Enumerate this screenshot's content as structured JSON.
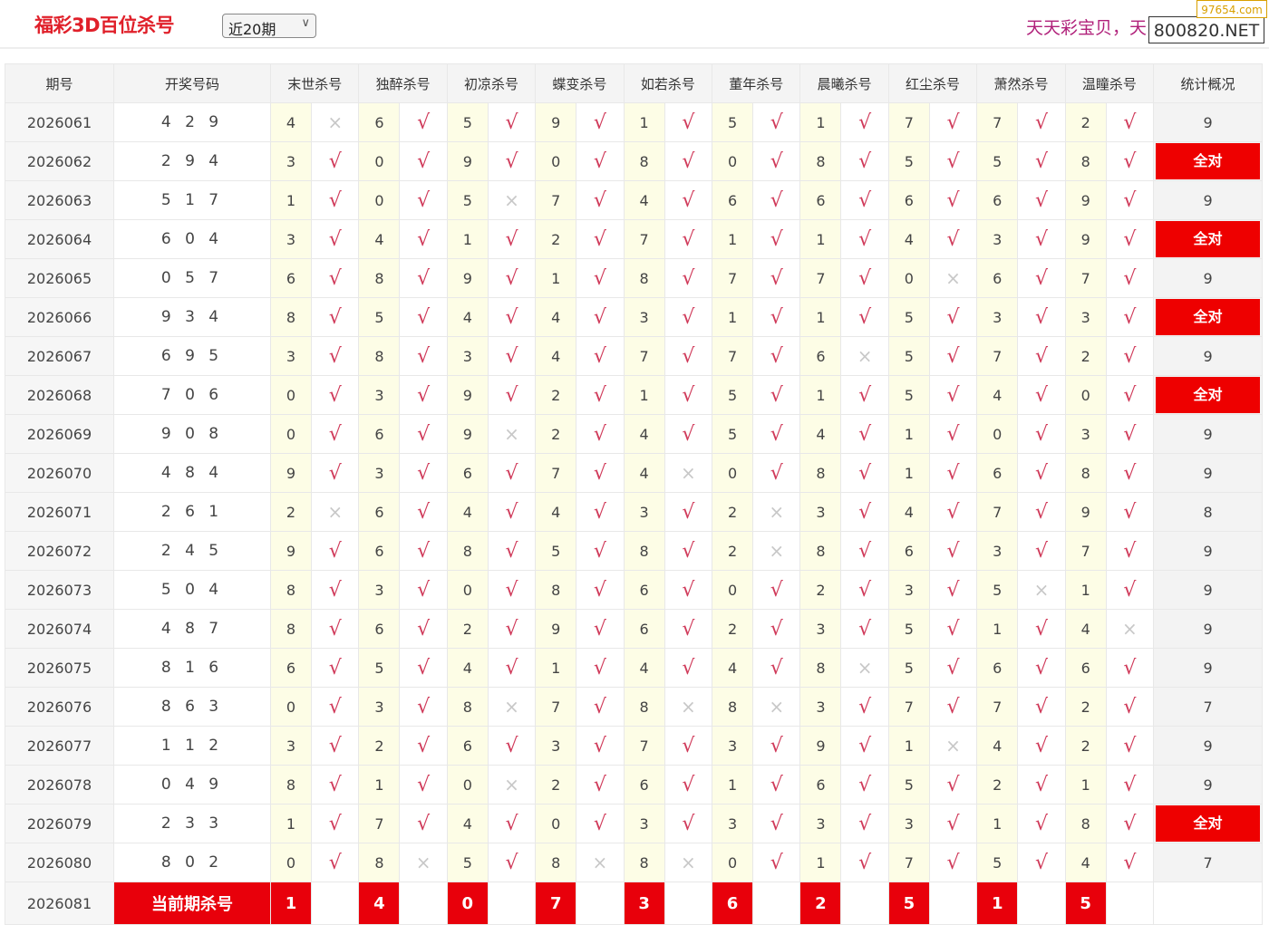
{
  "header": {
    "title": "福彩3D百位杀号",
    "period_select": "近20期",
    "slogan": "天天彩宝贝，天",
    "watermark_main": "800820.NET",
    "watermark_corner": "97654.com"
  },
  "colors": {
    "accent_red": "#e8000b",
    "check": "#d03a5a",
    "cross": "#c8c8c8",
    "number_bg": "#fdfde6"
  },
  "table": {
    "columns": [
      "期号",
      "开奖号码",
      "末世杀号",
      "独醉杀号",
      "初凉杀号",
      "蝶变杀号",
      "如若杀号",
      "董年杀号",
      "晨曦杀号",
      "红尘杀号",
      "萧然杀号",
      "温瞳杀号",
      "统计概况"
    ],
    "check_symbol": "√",
    "cross_symbol": "×",
    "rows": [
      {
        "period": "2026061",
        "draw": "4 2 9",
        "kills": [
          [
            4,
            false
          ],
          [
            6,
            true
          ],
          [
            5,
            true
          ],
          [
            9,
            true
          ],
          [
            1,
            true
          ],
          [
            5,
            true
          ],
          [
            1,
            true
          ],
          [
            7,
            true
          ],
          [
            7,
            true
          ],
          [
            2,
            true
          ]
        ],
        "stat": "9"
      },
      {
        "period": "2026062",
        "draw": "2 9 4",
        "kills": [
          [
            3,
            true
          ],
          [
            0,
            true
          ],
          [
            9,
            true
          ],
          [
            0,
            true
          ],
          [
            8,
            true
          ],
          [
            0,
            true
          ],
          [
            8,
            true
          ],
          [
            5,
            true
          ],
          [
            5,
            true
          ],
          [
            8,
            true
          ]
        ],
        "stat": "全对"
      },
      {
        "period": "2026063",
        "draw": "5 1 7",
        "kills": [
          [
            1,
            true
          ],
          [
            0,
            true
          ],
          [
            5,
            false
          ],
          [
            7,
            true
          ],
          [
            4,
            true
          ],
          [
            6,
            true
          ],
          [
            6,
            true
          ],
          [
            6,
            true
          ],
          [
            6,
            true
          ],
          [
            9,
            true
          ]
        ],
        "stat": "9"
      },
      {
        "period": "2026064",
        "draw": "6 0 4",
        "kills": [
          [
            3,
            true
          ],
          [
            4,
            true
          ],
          [
            1,
            true
          ],
          [
            2,
            true
          ],
          [
            7,
            true
          ],
          [
            1,
            true
          ],
          [
            1,
            true
          ],
          [
            4,
            true
          ],
          [
            3,
            true
          ],
          [
            9,
            true
          ]
        ],
        "stat": "全对"
      },
      {
        "period": "2026065",
        "draw": "0 5 7",
        "kills": [
          [
            6,
            true
          ],
          [
            8,
            true
          ],
          [
            9,
            true
          ],
          [
            1,
            true
          ],
          [
            8,
            true
          ],
          [
            7,
            true
          ],
          [
            7,
            true
          ],
          [
            0,
            false
          ],
          [
            6,
            true
          ],
          [
            7,
            true
          ]
        ],
        "stat": "9"
      },
      {
        "period": "2026066",
        "draw": "9 3 4",
        "kills": [
          [
            8,
            true
          ],
          [
            5,
            true
          ],
          [
            4,
            true
          ],
          [
            4,
            true
          ],
          [
            3,
            true
          ],
          [
            1,
            true
          ],
          [
            1,
            true
          ],
          [
            5,
            true
          ],
          [
            3,
            true
          ],
          [
            3,
            true
          ]
        ],
        "stat": "全对"
      },
      {
        "period": "2026067",
        "draw": "6 9 5",
        "kills": [
          [
            3,
            true
          ],
          [
            8,
            true
          ],
          [
            3,
            true
          ],
          [
            4,
            true
          ],
          [
            7,
            true
          ],
          [
            7,
            true
          ],
          [
            6,
            false
          ],
          [
            5,
            true
          ],
          [
            7,
            true
          ],
          [
            2,
            true
          ]
        ],
        "stat": "9"
      },
      {
        "period": "2026068",
        "draw": "7 0 6",
        "kills": [
          [
            0,
            true
          ],
          [
            3,
            true
          ],
          [
            9,
            true
          ],
          [
            2,
            true
          ],
          [
            1,
            true
          ],
          [
            5,
            true
          ],
          [
            1,
            true
          ],
          [
            5,
            true
          ],
          [
            4,
            true
          ],
          [
            0,
            true
          ]
        ],
        "stat": "全对"
      },
      {
        "period": "2026069",
        "draw": "9 0 8",
        "kills": [
          [
            0,
            true
          ],
          [
            6,
            true
          ],
          [
            9,
            false
          ],
          [
            2,
            true
          ],
          [
            4,
            true
          ],
          [
            5,
            true
          ],
          [
            4,
            true
          ],
          [
            1,
            true
          ],
          [
            0,
            true
          ],
          [
            3,
            true
          ]
        ],
        "stat": "9"
      },
      {
        "period": "2026070",
        "draw": "4 8 4",
        "kills": [
          [
            9,
            true
          ],
          [
            3,
            true
          ],
          [
            6,
            true
          ],
          [
            7,
            true
          ],
          [
            4,
            false
          ],
          [
            0,
            true
          ],
          [
            8,
            true
          ],
          [
            1,
            true
          ],
          [
            6,
            true
          ],
          [
            8,
            true
          ]
        ],
        "stat": "9"
      },
      {
        "period": "2026071",
        "draw": "2 6 1",
        "kills": [
          [
            2,
            false
          ],
          [
            6,
            true
          ],
          [
            4,
            true
          ],
          [
            4,
            true
          ],
          [
            3,
            true
          ],
          [
            2,
            false
          ],
          [
            3,
            true
          ],
          [
            4,
            true
          ],
          [
            7,
            true
          ],
          [
            9,
            true
          ]
        ],
        "stat": "8"
      },
      {
        "period": "2026072",
        "draw": "2 4 5",
        "kills": [
          [
            9,
            true
          ],
          [
            6,
            true
          ],
          [
            8,
            true
          ],
          [
            5,
            true
          ],
          [
            8,
            true
          ],
          [
            2,
            false
          ],
          [
            8,
            true
          ],
          [
            6,
            true
          ],
          [
            3,
            true
          ],
          [
            7,
            true
          ]
        ],
        "stat": "9"
      },
      {
        "period": "2026073",
        "draw": "5 0 4",
        "kills": [
          [
            8,
            true
          ],
          [
            3,
            true
          ],
          [
            0,
            true
          ],
          [
            8,
            true
          ],
          [
            6,
            true
          ],
          [
            0,
            true
          ],
          [
            2,
            true
          ],
          [
            3,
            true
          ],
          [
            5,
            false
          ],
          [
            1,
            true
          ]
        ],
        "stat": "9"
      },
      {
        "period": "2026074",
        "draw": "4 8 7",
        "kills": [
          [
            8,
            true
          ],
          [
            6,
            true
          ],
          [
            2,
            true
          ],
          [
            9,
            true
          ],
          [
            6,
            true
          ],
          [
            2,
            true
          ],
          [
            3,
            true
          ],
          [
            5,
            true
          ],
          [
            1,
            true
          ],
          [
            4,
            false
          ]
        ],
        "stat": "9"
      },
      {
        "period": "2026075",
        "draw": "8 1 6",
        "kills": [
          [
            6,
            true
          ],
          [
            5,
            true
          ],
          [
            4,
            true
          ],
          [
            1,
            true
          ],
          [
            4,
            true
          ],
          [
            4,
            true
          ],
          [
            8,
            false
          ],
          [
            5,
            true
          ],
          [
            6,
            true
          ],
          [
            6,
            true
          ]
        ],
        "stat": "9"
      },
      {
        "period": "2026076",
        "draw": "8 6 3",
        "kills": [
          [
            0,
            true
          ],
          [
            3,
            true
          ],
          [
            8,
            false
          ],
          [
            7,
            true
          ],
          [
            8,
            false
          ],
          [
            8,
            false
          ],
          [
            3,
            true
          ],
          [
            7,
            true
          ],
          [
            7,
            true
          ],
          [
            2,
            true
          ]
        ],
        "stat": "7"
      },
      {
        "period": "2026077",
        "draw": "1 1 2",
        "kills": [
          [
            3,
            true
          ],
          [
            2,
            true
          ],
          [
            6,
            true
          ],
          [
            3,
            true
          ],
          [
            7,
            true
          ],
          [
            3,
            true
          ],
          [
            9,
            true
          ],
          [
            1,
            false
          ],
          [
            4,
            true
          ],
          [
            2,
            true
          ]
        ],
        "stat": "9"
      },
      {
        "period": "2026078",
        "draw": "0 4 9",
        "kills": [
          [
            8,
            true
          ],
          [
            1,
            true
          ],
          [
            0,
            false
          ],
          [
            2,
            true
          ],
          [
            6,
            true
          ],
          [
            1,
            true
          ],
          [
            6,
            true
          ],
          [
            5,
            true
          ],
          [
            2,
            true
          ],
          [
            1,
            true
          ]
        ],
        "stat": "9"
      },
      {
        "period": "2026079",
        "draw": "2 3 3",
        "kills": [
          [
            1,
            true
          ],
          [
            7,
            true
          ],
          [
            4,
            true
          ],
          [
            0,
            true
          ],
          [
            3,
            true
          ],
          [
            3,
            true
          ],
          [
            3,
            true
          ],
          [
            3,
            true
          ],
          [
            1,
            true
          ],
          [
            8,
            true
          ]
        ],
        "stat": "全对"
      },
      {
        "period": "2026080",
        "draw": "8 0 2",
        "kills": [
          [
            0,
            true
          ],
          [
            8,
            false
          ],
          [
            5,
            true
          ],
          [
            8,
            false
          ],
          [
            8,
            false
          ],
          [
            0,
            true
          ],
          [
            1,
            true
          ],
          [
            7,
            true
          ],
          [
            5,
            true
          ],
          [
            4,
            true
          ]
        ],
        "stat": "7"
      }
    ],
    "current": {
      "period": "2026081",
      "label": "当前期杀号",
      "kills": [
        1,
        4,
        0,
        7,
        3,
        6,
        2,
        5,
        1,
        5
      ]
    }
  }
}
